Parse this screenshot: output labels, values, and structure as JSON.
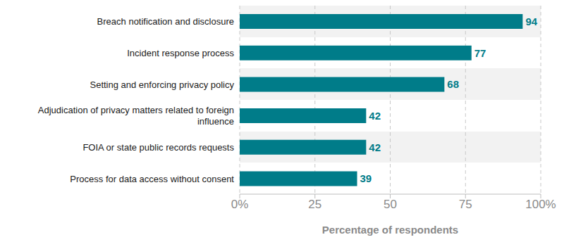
{
  "chart_data": {
    "type": "bar",
    "orientation": "horizontal",
    "categories": [
      "Breach notification and disclosure",
      "Incident response process",
      "Setting and enforcing privacy policy",
      "Adjudication of privacy matters related to foreign influence",
      "FOIA or state public records requests",
      "Process for data access without consent"
    ],
    "values": [
      94,
      77,
      68,
      42,
      42,
      39
    ],
    "color": "#007c89",
    "xlabel": "Percentage of respondents",
    "xlim": [
      0,
      100
    ],
    "xticks": [
      {
        "value": 0,
        "label": "0%"
      },
      25,
      50,
      75,
      {
        "value": 100,
        "label": "100%"
      }
    ],
    "grid": true,
    "data_labels": true
  }
}
